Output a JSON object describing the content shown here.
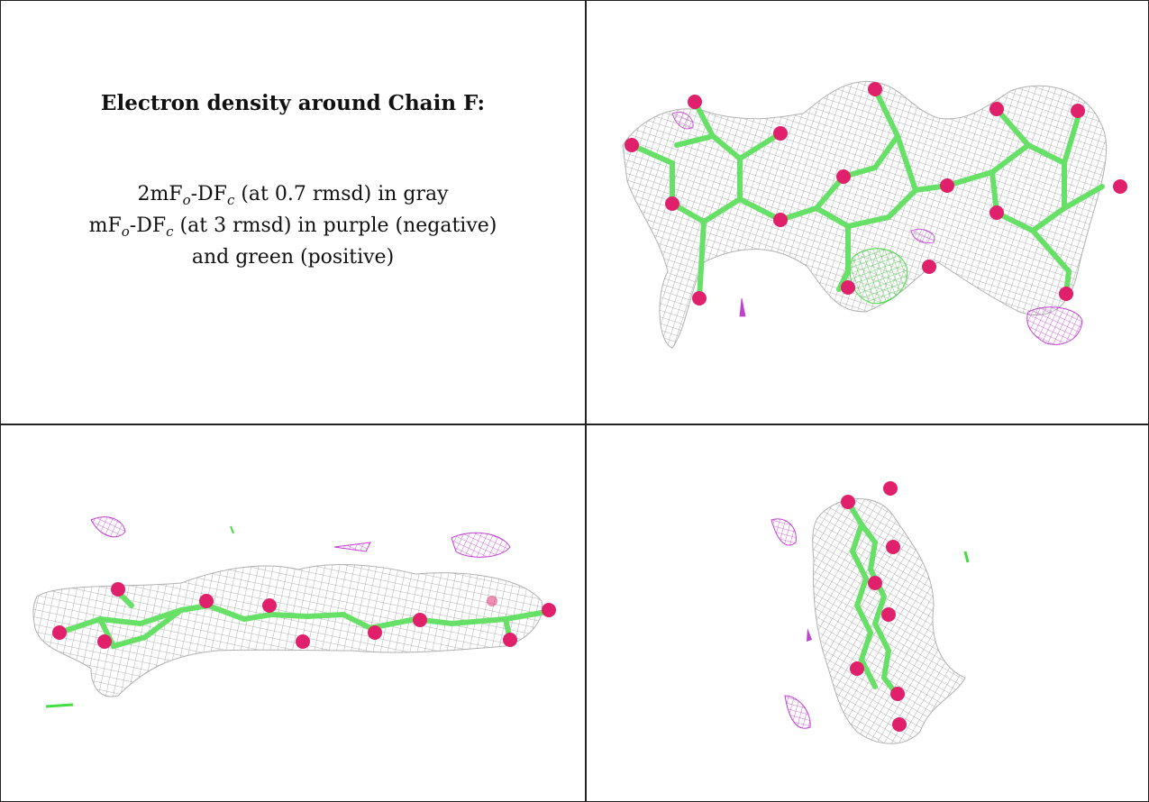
{
  "heading": "Electron density around Chain F:",
  "legend": {
    "line1": {
      "a": "2mF",
      "a_sub": "o",
      "b": "-DF",
      "b_sub": "c",
      "rest": " (at 0.7 rmsd) in gray"
    },
    "line2": {
      "a": "mF",
      "a_sub": "o",
      "b": "-DF",
      "b_sub": "c",
      "rest": " (at 3 rmsd) in purple (negative)"
    },
    "line3": "and green (positive)"
  },
  "colors": {
    "mesh_2fofc": "#a8a8a8",
    "mesh_negative": "#c040d0",
    "mesh_positive": "#44dd44",
    "bonds": "#66e066",
    "oxygen": "#e0206a",
    "border": "#222222"
  },
  "panels": [
    "top-view",
    "side-view",
    "end-view"
  ]
}
